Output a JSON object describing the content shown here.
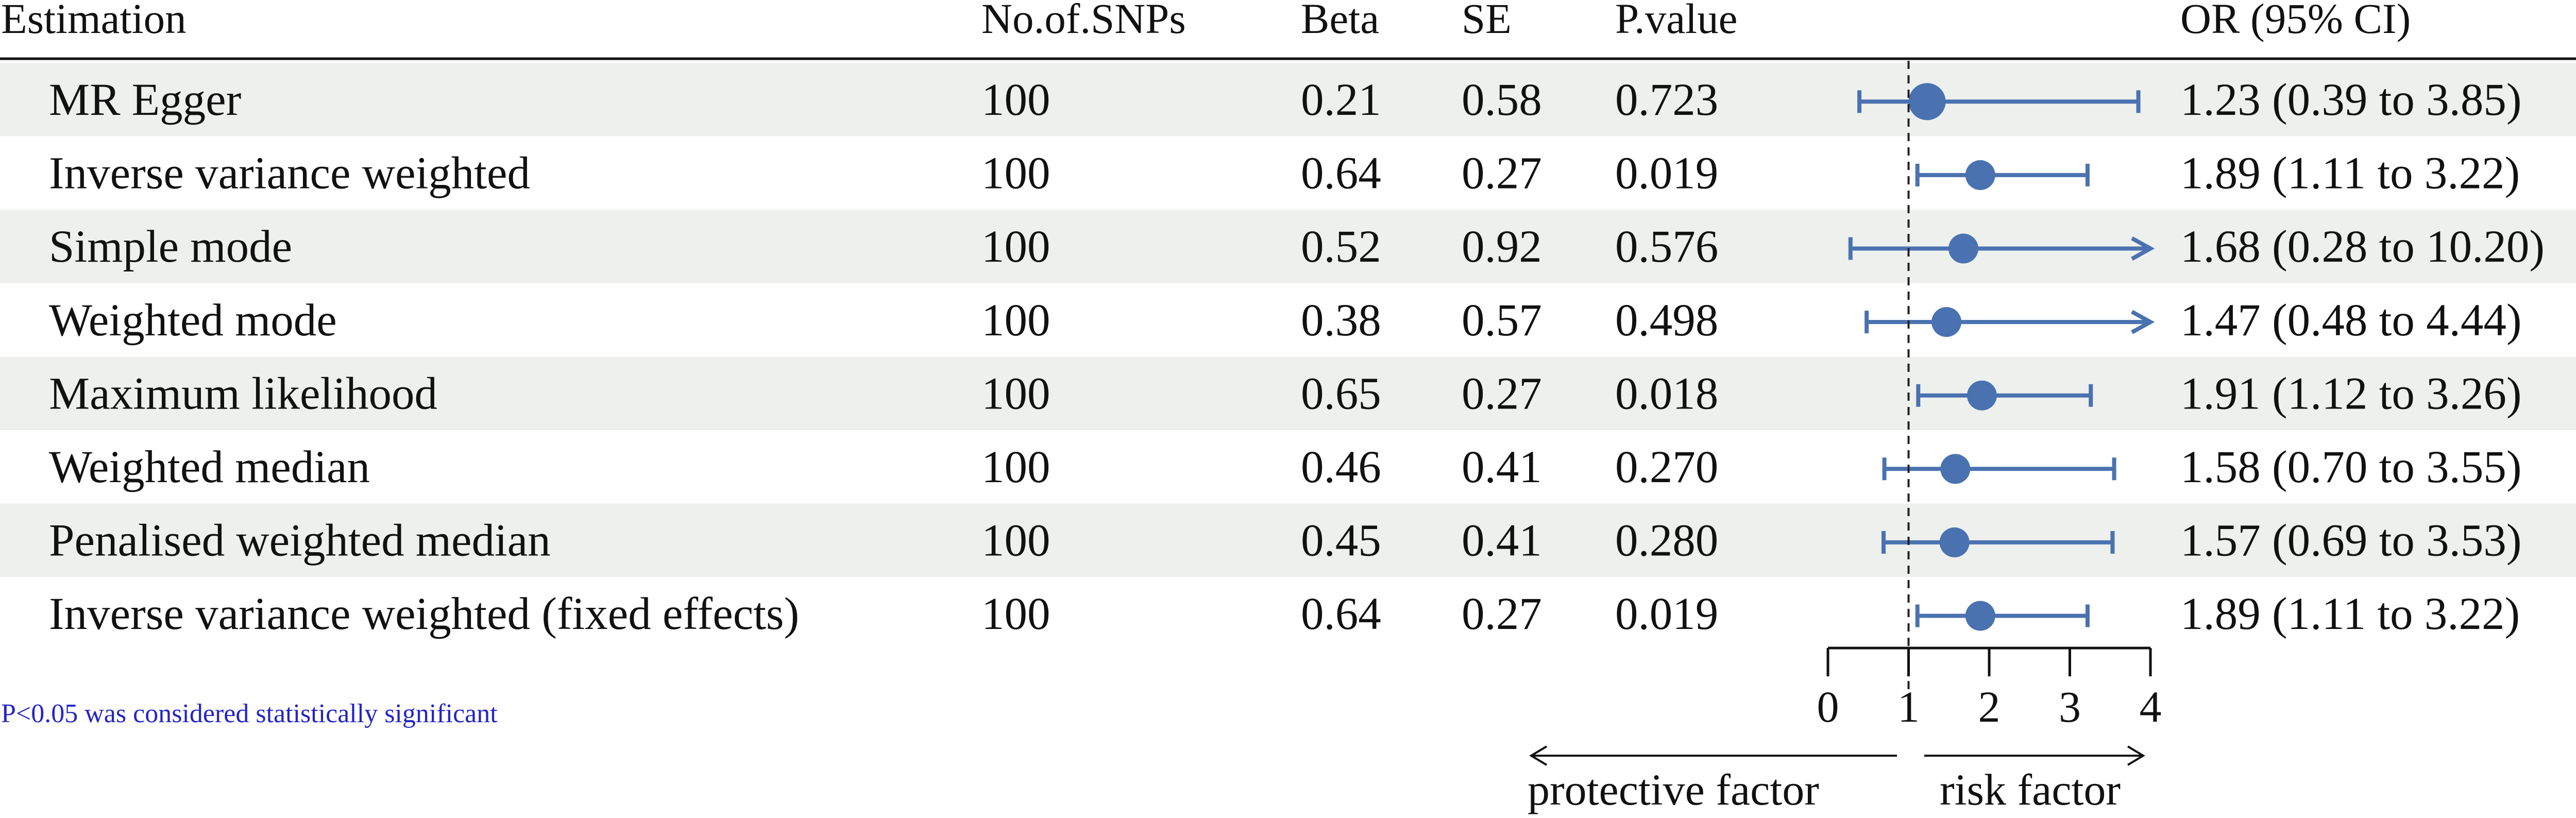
{
  "columns": {
    "estimation": "Estimation",
    "snps": "No.of.SNPs",
    "beta": "Beta",
    "se": "SE",
    "pvalue": "P.value",
    "or": "OR (95% CI)"
  },
  "footnote": "P<0.05 was considered statistically significant",
  "direction_labels": {
    "left": "protective factor",
    "right": "risk factor"
  },
  "colors": {
    "marker": "#4a72b0",
    "shaded_row": "#eef0ee",
    "footnote": "#2424c8"
  },
  "chart_data": {
    "type": "forest",
    "reference_line": 1,
    "xlim": [
      0,
      4
    ],
    "x_ticks": [
      "0",
      "1",
      "2",
      "3",
      "4"
    ],
    "rows": [
      {
        "method": "MR Egger",
        "snps": "100",
        "beta": "0.21",
        "se": "0.58",
        "pvalue": "0.723",
        "or": 1.23,
        "lower": 0.39,
        "upper": 3.85,
        "label": "1.23 (0.39 to 3.85)"
      },
      {
        "method": "Inverse variance weighted",
        "snps": "100",
        "beta": "0.64",
        "se": "0.27",
        "pvalue": "0.019",
        "or": 1.89,
        "lower": 1.11,
        "upper": 3.22,
        "label": "1.89 (1.11 to 3.22)"
      },
      {
        "method": "Simple mode",
        "snps": "100",
        "beta": "0.52",
        "se": "0.92",
        "pvalue": "0.576",
        "or": 1.68,
        "lower": 0.28,
        "upper": 10.2,
        "label": "1.68 (0.28 to 10.20)"
      },
      {
        "method": "Weighted mode",
        "snps": "100",
        "beta": "0.38",
        "se": "0.57",
        "pvalue": "0.498",
        "or": 1.47,
        "lower": 0.48,
        "upper": 4.44,
        "label": "1.47 (0.48 to 4.44)"
      },
      {
        "method": "Maximum likelihood",
        "snps": "100",
        "beta": "0.65",
        "se": "0.27",
        "pvalue": "0.018",
        "or": 1.91,
        "lower": 1.12,
        "upper": 3.26,
        "label": "1.91 (1.12 to 3.26)"
      },
      {
        "method": "Weighted median",
        "snps": "100",
        "beta": "0.46",
        "se": "0.41",
        "pvalue": "0.270",
        "or": 1.58,
        "lower": 0.7,
        "upper": 3.55,
        "label": "1.58 (0.70 to 3.55)"
      },
      {
        "method": "Penalised weighted median",
        "snps": "100",
        "beta": "0.45",
        "se": "0.41",
        "pvalue": "0.280",
        "or": 1.57,
        "lower": 0.69,
        "upper": 3.53,
        "label": "1.57 (0.69 to 3.53)"
      },
      {
        "method": "Inverse variance weighted (fixed effects)",
        "snps": "100",
        "beta": "0.64",
        "se": "0.27",
        "pvalue": "0.019",
        "or": 1.89,
        "lower": 1.11,
        "upper": 3.22,
        "label": "1.89 (1.11 to 3.22)"
      }
    ]
  }
}
